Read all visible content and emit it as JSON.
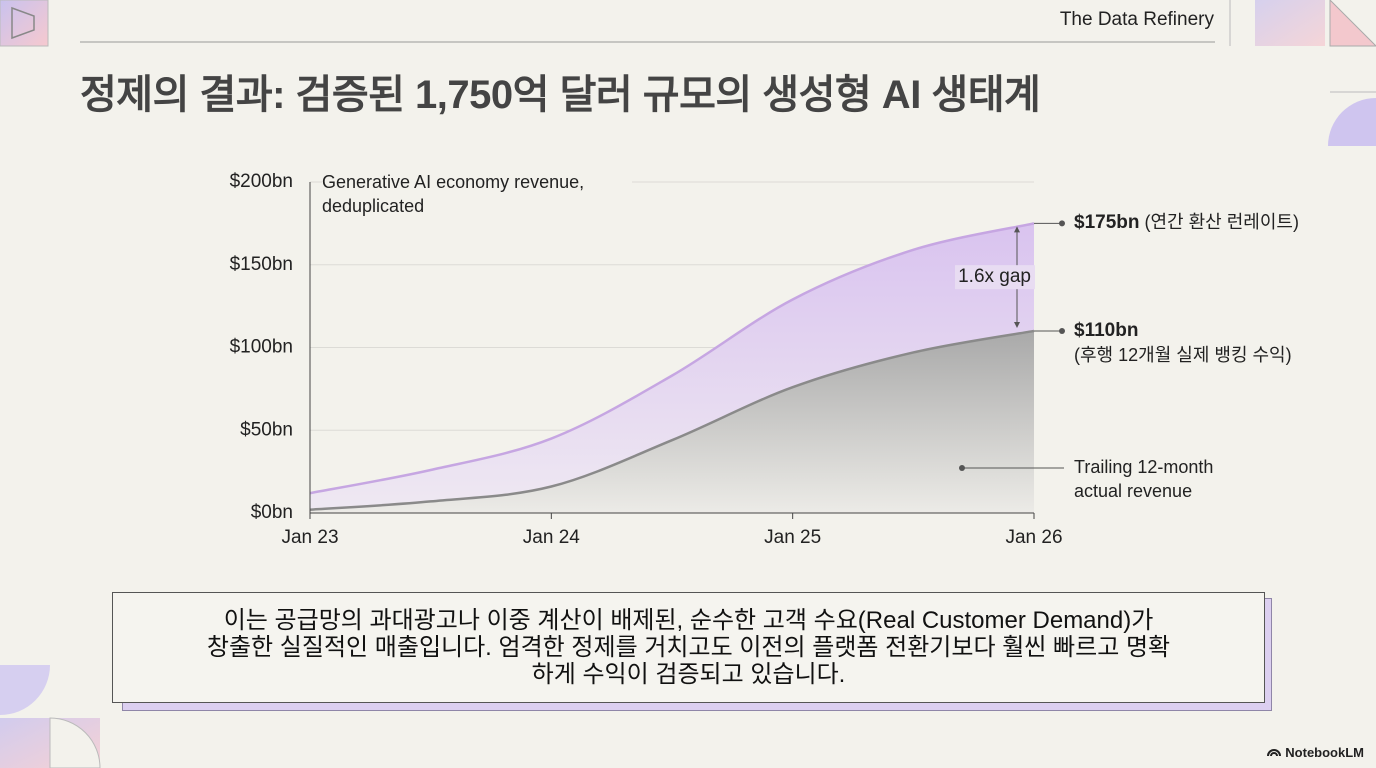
{
  "header": {
    "brand": "The Data Refinery"
  },
  "title": "정제의 결과: 검증된 1,750억 달러 규모의 생성형 AI 생태계",
  "chart_data": {
    "type": "area",
    "ylabel": "Generative AI economy revenue, deduplicated",
    "x": [
      0,
      6,
      12,
      18,
      24,
      30,
      36
    ],
    "xlim": [
      0,
      36
    ],
    "xticks": [
      {
        "value": 0,
        "label": "Jan 23"
      },
      {
        "value": 12,
        "label": "Jan 24"
      },
      {
        "value": 24,
        "label": "Jan 25"
      },
      {
        "value": 36,
        "label": "Jan 26"
      }
    ],
    "ylim": [
      0,
      200
    ],
    "yticks": [
      {
        "value": 0,
        "label": "$0bn"
      },
      {
        "value": 50,
        "label": "$50bn"
      },
      {
        "value": 100,
        "label": "$100bn"
      },
      {
        "value": 150,
        "label": "$150bn"
      },
      {
        "value": 200,
        "label": "$200bn"
      }
    ],
    "grid": true,
    "series": [
      {
        "color": "#c6a6e2",
        "values": [
          12,
          26,
          45,
          83,
          129,
          159,
          175
        ]
      },
      {
        "name": "Trailing 12-month actual revenue",
        "color": "#8a8a8a",
        "values": [
          2,
          7,
          16,
          44,
          76,
          97,
          110
        ]
      }
    ],
    "annotations": [
      {
        "label": "$175bn",
        "note": "(연간 환산 런레이트)"
      },
      {
        "label": "$110bn",
        "note": "(후행 12개월 실제 뱅킹 수익)"
      }
    ],
    "gap_label": "1.6x gap"
  },
  "callout": {
    "lines": [
      "이는 공급망의 과대광고나 이중 계산이 배제된, 순수한 고객 수요(Real Customer Demand)가",
      "창출한 실질적인 매출입니다. 엄격한 정제를 거치고도 이전의 플랫폼 전환기보다 훨씬 빠르고 명확",
      "하게 수익이 검증되고 있습니다."
    ]
  },
  "footer": {
    "brand": "NotebookLM"
  }
}
